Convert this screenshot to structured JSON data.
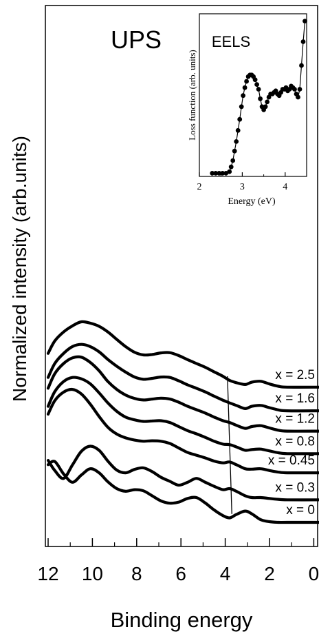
{
  "chart_data": [
    {
      "type": "line",
      "title": "UPS",
      "xlabel": "Binding energy",
      "ylabel": "Normalized intensity (arb.units)",
      "xlim": [
        12,
        -0.3
      ],
      "x_reversed": true,
      "x_ticks": [
        "12",
        "10",
        "8",
        "6",
        "4",
        "2",
        "0"
      ],
      "y_ticks_labeled": false,
      "grid": false,
      "series": [
        {
          "name": "x = 2.5",
          "offset": 6.0,
          "x": [
            12.0,
            11.7,
            11.3,
            10.9,
            10.5,
            10.1,
            9.7,
            9.3,
            8.9,
            8.5,
            8.1,
            7.7,
            7.3,
            6.9,
            6.5,
            6.1,
            5.7,
            5.3,
            4.9,
            4.5,
            4.1,
            3.8,
            3.5,
            3.1,
            2.8,
            2.4,
            2.0,
            1.6,
            1.2,
            -0.3
          ],
          "y": [
            1.5,
            2.05,
            2.45,
            2.72,
            2.9,
            2.84,
            2.7,
            2.45,
            2.12,
            1.8,
            1.55,
            1.43,
            1.45,
            1.52,
            1.53,
            1.4,
            1.22,
            1.05,
            0.88,
            0.68,
            0.48,
            0.3,
            0.2,
            0.12,
            0.22,
            0.26,
            0.14,
            0.04,
            0.0,
            0.0
          ]
        },
        {
          "name": "x = 1.6",
          "offset": 4.95,
          "x": [
            12.0,
            11.7,
            11.3,
            10.9,
            10.5,
            10.1,
            9.7,
            9.3,
            8.9,
            8.5,
            8.1,
            7.7,
            7.3,
            6.9,
            6.5,
            6.1,
            5.7,
            5.3,
            4.9,
            4.5,
            4.1,
            3.8,
            3.5,
            3.1,
            2.8,
            2.4,
            2.0,
            1.6,
            1.2,
            -0.3
          ],
          "y": [
            1.48,
            2.1,
            2.55,
            2.85,
            2.95,
            2.85,
            2.62,
            2.28,
            1.98,
            1.72,
            1.5,
            1.4,
            1.44,
            1.5,
            1.48,
            1.33,
            1.15,
            1.0,
            0.84,
            0.65,
            0.47,
            0.35,
            0.24,
            0.1,
            0.2,
            0.24,
            0.14,
            0.04,
            0.0,
            0.0
          ]
        },
        {
          "name": "x = 1.2",
          "offset": 4.05,
          "x": [
            12.0,
            11.7,
            11.3,
            10.9,
            10.5,
            10.1,
            9.7,
            9.3,
            8.9,
            8.5,
            8.1,
            7.7,
            7.3,
            6.9,
            6.5,
            6.1,
            5.7,
            5.3,
            4.9,
            4.5,
            4.1,
            3.8,
            3.5,
            3.1,
            2.8,
            2.4,
            2.0,
            1.6,
            1.2,
            -0.3
          ],
          "y": [
            1.9,
            2.55,
            3.0,
            3.25,
            3.28,
            3.05,
            2.68,
            2.2,
            1.85,
            1.6,
            1.45,
            1.38,
            1.42,
            1.46,
            1.42,
            1.28,
            1.1,
            0.95,
            0.8,
            0.62,
            0.46,
            0.38,
            0.26,
            0.12,
            0.2,
            0.24,
            0.14,
            0.04,
            0.0,
            0.0
          ]
        },
        {
          "name": "x = 0.8",
          "offset": 3.05,
          "x": [
            12.0,
            11.7,
            11.3,
            10.9,
            10.5,
            10.1,
            9.7,
            9.3,
            8.9,
            8.5,
            8.1,
            7.7,
            7.3,
            6.9,
            6.5,
            6.1,
            5.7,
            5.3,
            4.9,
            4.5,
            4.1,
            3.8,
            3.5,
            3.1,
            2.8,
            2.4,
            2.0,
            1.6,
            1.2,
            -0.3
          ],
          "y": [
            2.1,
            2.75,
            3.2,
            3.38,
            3.32,
            3.1,
            2.7,
            2.25,
            1.88,
            1.62,
            1.5,
            1.43,
            1.45,
            1.46,
            1.38,
            1.2,
            1.02,
            0.88,
            0.72,
            0.55,
            0.42,
            0.4,
            0.3,
            0.15,
            0.18,
            0.2,
            0.12,
            0.04,
            0.0,
            0.0
          ]
        },
        {
          "name": "x = 0.45",
          "offset": 2.2,
          "x": [
            12.0,
            11.7,
            11.3,
            10.9,
            10.5,
            10.1,
            9.7,
            9.3,
            8.9,
            8.5,
            8.1,
            7.7,
            7.3,
            6.9,
            6.5,
            6.1,
            5.7,
            5.3,
            4.9,
            4.5,
            4.1,
            3.8,
            3.5,
            3.1,
            2.8,
            2.4,
            2.0,
            1.6,
            1.2,
            -0.3
          ],
          "y": [
            2.6,
            3.2,
            3.58,
            3.7,
            3.5,
            3.05,
            2.5,
            2.02,
            1.72,
            1.55,
            1.45,
            1.4,
            1.42,
            1.4,
            1.3,
            1.1,
            0.9,
            0.78,
            0.66,
            0.52,
            0.44,
            0.48,
            0.36,
            0.18,
            0.16,
            0.18,
            0.1,
            0.03,
            0.0,
            0.0
          ]
        },
        {
          "name": "x = 0.3",
          "offset": 1.0,
          "x": [
            12.0,
            11.7,
            11.3,
            10.9,
            10.5,
            10.1,
            9.7,
            9.3,
            8.9,
            8.5,
            8.1,
            7.7,
            7.3,
            6.9,
            6.5,
            6.1,
            5.7,
            5.3,
            4.9,
            4.5,
            4.1,
            3.8,
            3.5,
            3.1,
            2.8,
            2.4,
            2.0,
            1.6,
            1.2,
            -0.3
          ],
          "y": [
            1.75,
            1.3,
            0.95,
            1.55,
            2.15,
            2.38,
            2.2,
            1.72,
            1.32,
            1.2,
            1.35,
            1.42,
            1.25,
            1.0,
            0.82,
            0.65,
            0.78,
            0.95,
            0.78,
            0.6,
            0.45,
            0.5,
            0.38,
            0.18,
            0.1,
            0.1,
            0.06,
            0.02,
            0.0,
            0.0
          ]
        },
        {
          "name": "x = 0",
          "offset": 0.0,
          "x": [
            12.0,
            11.7,
            11.3,
            10.9,
            10.5,
            10.1,
            9.7,
            9.3,
            8.9,
            8.5,
            8.1,
            7.7,
            7.3,
            6.9,
            6.5,
            6.1,
            5.7,
            5.3,
            4.9,
            4.5,
            4.1,
            3.8,
            3.5,
            3.1,
            2.8,
            2.4,
            2.0,
            1.6,
            1.2,
            -0.3
          ],
          "y": [
            2.56,
            2.7,
            2.15,
            1.78,
            2.1,
            2.38,
            2.2,
            1.8,
            1.5,
            1.38,
            1.45,
            1.4,
            1.18,
            0.95,
            0.85,
            0.9,
            1.06,
            1.1,
            0.86,
            0.55,
            0.3,
            0.2,
            0.35,
            0.5,
            0.38,
            0.12,
            0.03,
            0.0,
            0.0,
            0.0
          ]
        }
      ],
      "guide_line": {
        "x": [
          3.7,
          3.9
        ],
        "y_from_series": [
          "x = 0",
          "x = 2.5"
        ]
      }
    },
    {
      "type": "scatter",
      "title": "EELS",
      "xlabel": "Energy (eV)",
      "ylabel": "Loss function (arb. units)",
      "xlim": [
        2,
        4.5
      ],
      "ylim": [
        0,
        1
      ],
      "x_ticks": [
        "2",
        "3",
        "4"
      ],
      "series": [
        {
          "name": "",
          "x": [
            2.3,
            2.38,
            2.46,
            2.54,
            2.62,
            2.7,
            2.74,
            2.78,
            2.82,
            2.86,
            2.9,
            2.94,
            2.98,
            3.02,
            3.06,
            3.1,
            3.14,
            3.18,
            3.22,
            3.26,
            3.3,
            3.34,
            3.38,
            3.42,
            3.46,
            3.5,
            3.54,
            3.58,
            3.62,
            3.66,
            3.7,
            3.74,
            3.78,
            3.82,
            3.86,
            3.9,
            3.94,
            3.98,
            4.02,
            4.06,
            4.1,
            4.14,
            4.18,
            4.22,
            4.26,
            4.3,
            4.34,
            4.38,
            4.42,
            4.46
          ],
          "y": [
            0.02,
            0.02,
            0.02,
            0.02,
            0.02,
            0.03,
            0.06,
            0.1,
            0.16,
            0.22,
            0.29,
            0.36,
            0.44,
            0.51,
            0.56,
            0.6,
            0.63,
            0.64,
            0.64,
            0.63,
            0.61,
            0.58,
            0.55,
            0.49,
            0.44,
            0.42,
            0.44,
            0.47,
            0.5,
            0.52,
            0.52,
            0.53,
            0.54,
            0.52,
            0.51,
            0.53,
            0.55,
            0.55,
            0.56,
            0.54,
            0.55,
            0.57,
            0.56,
            0.55,
            0.52,
            0.5,
            0.55,
            0.7,
            0.85,
            0.98
          ]
        }
      ]
    }
  ]
}
